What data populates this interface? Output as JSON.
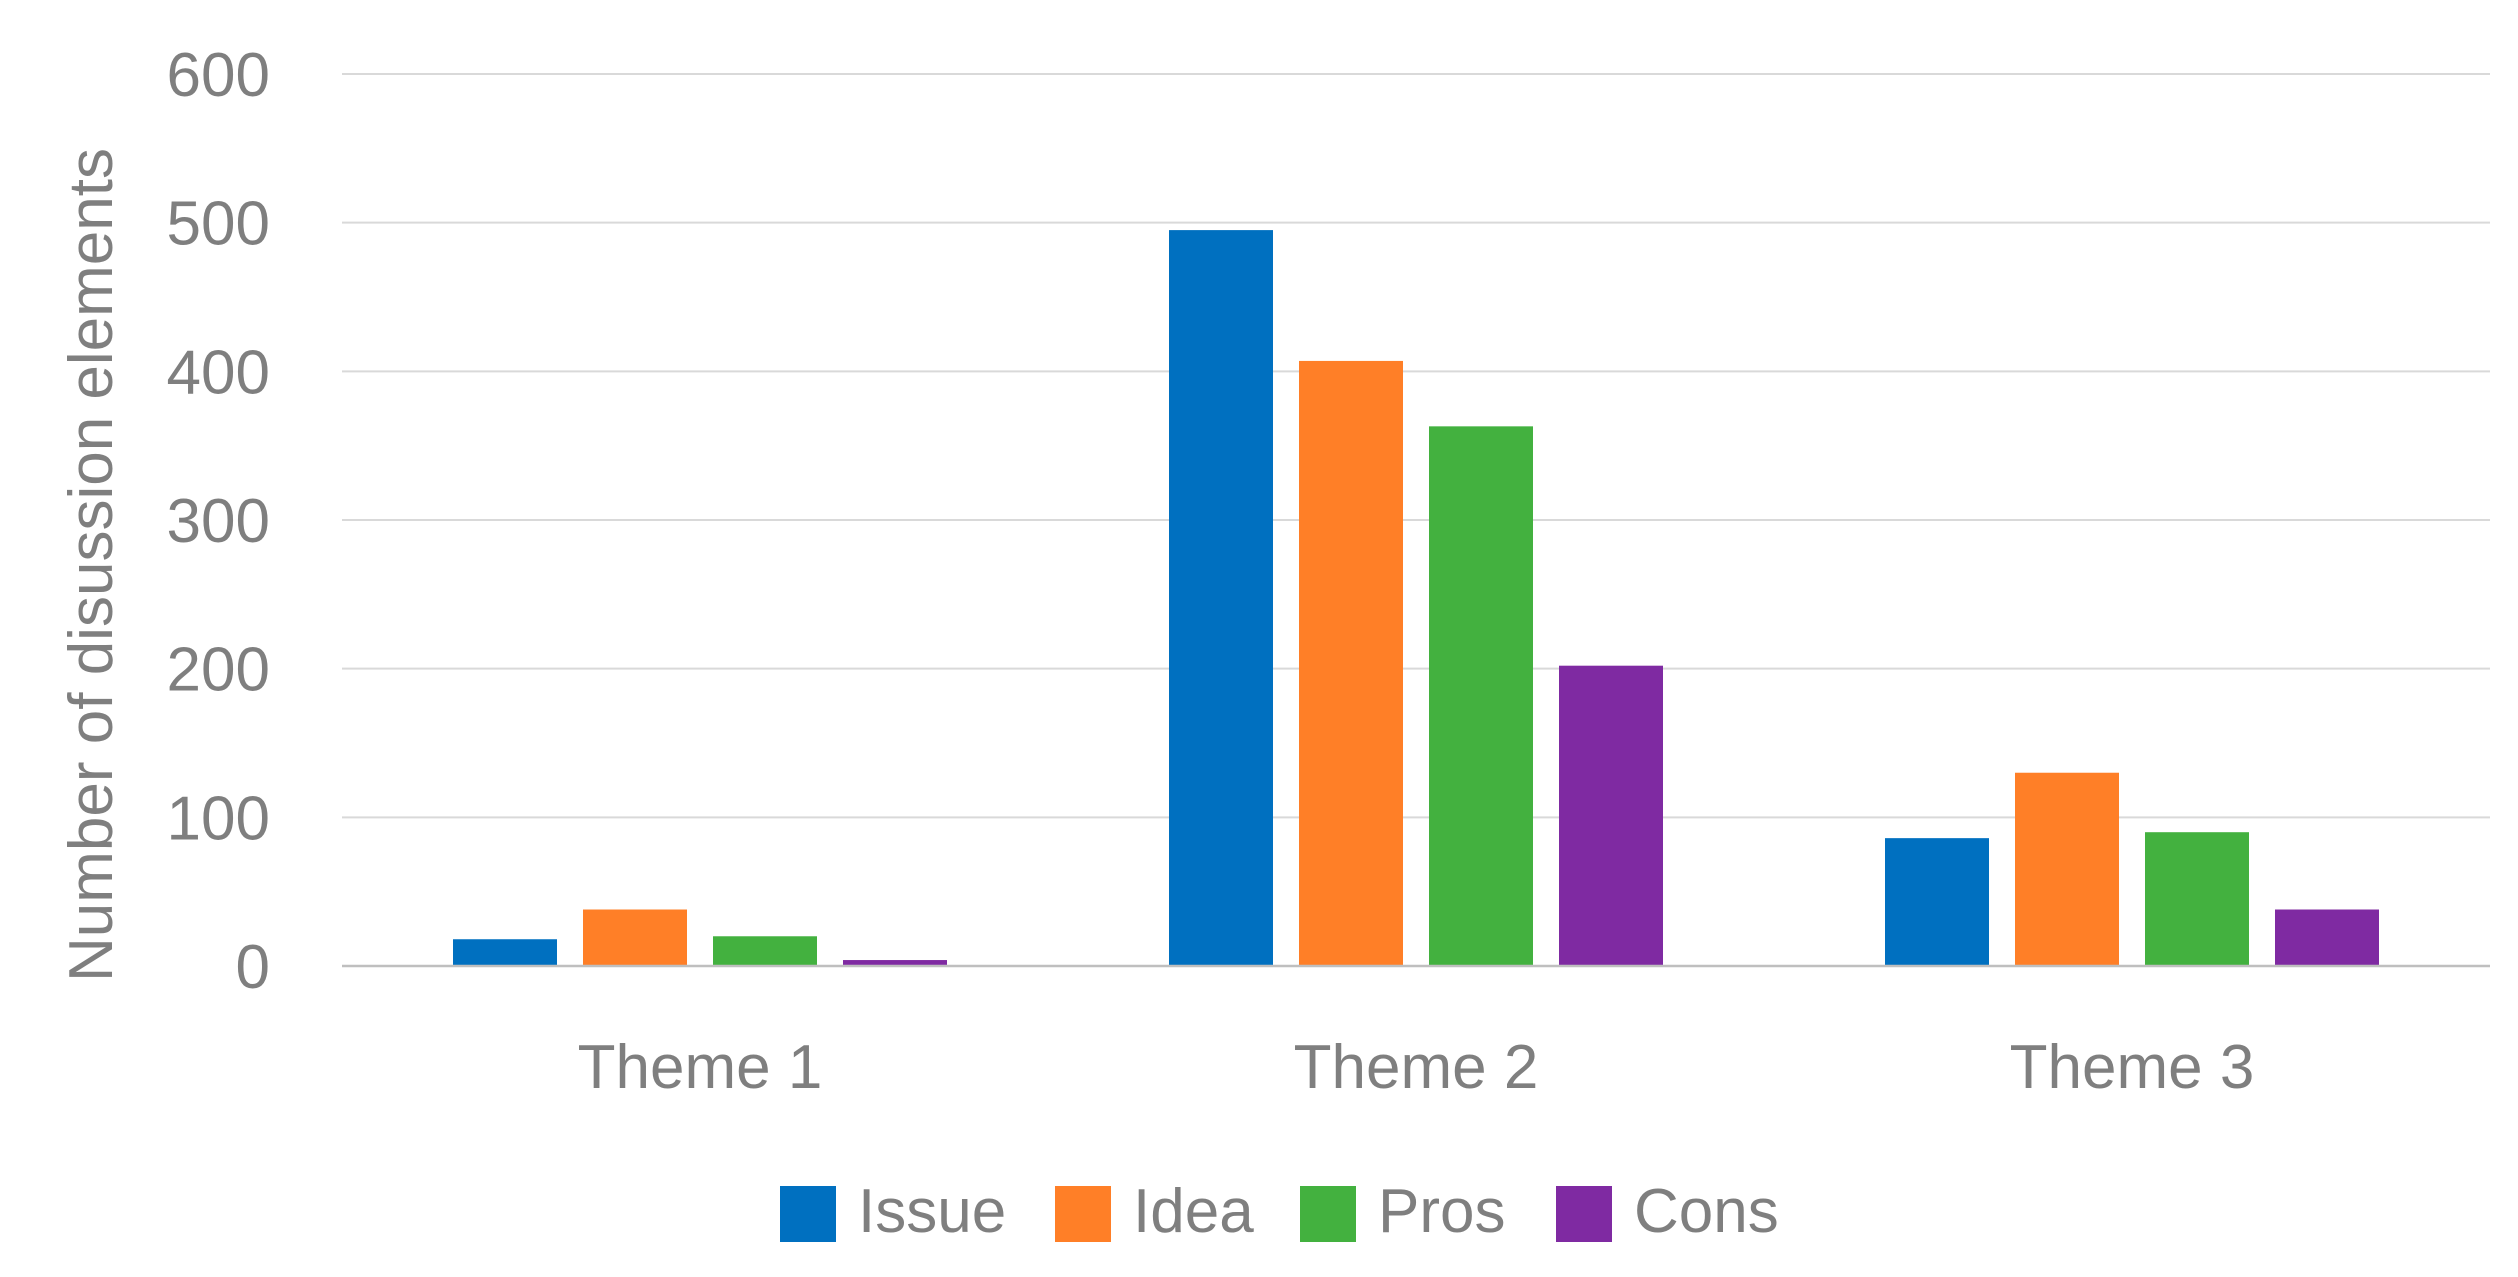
{
  "chart_data": {
    "type": "bar",
    "title": "",
    "xlabel": "",
    "ylabel": "Number of disussion elements",
    "ylim": [
      0,
      600
    ],
    "yticks": [
      0,
      100,
      200,
      300,
      400,
      500,
      600
    ],
    "grid": true,
    "legend_position": "bottom",
    "categories": [
      "Theme 1",
      "Theme 2",
      "Theme 3"
    ],
    "series": [
      {
        "name": "Issue",
        "color": "#0070c0",
        "values": [
          18,
          495,
          86
        ]
      },
      {
        "name": "Idea",
        "color": "#ff7f27",
        "values": [
          38,
          407,
          130
        ]
      },
      {
        "name": "Pros",
        "color": "#43b13f",
        "values": [
          20,
          363,
          90
        ]
      },
      {
        "name": "Cons",
        "color": "#7f2aa2",
        "values": [
          4,
          202,
          38
        ]
      }
    ]
  }
}
